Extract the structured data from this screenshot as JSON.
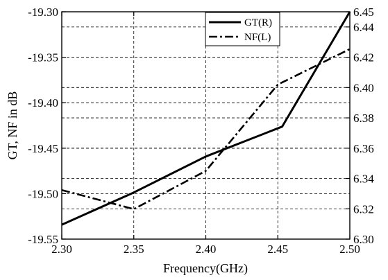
{
  "chart_data": {
    "type": "line",
    "xlabel": "Frequency(GHz)",
    "ylabel": "GT, NF in dB",
    "xlim": [
      2.3,
      2.5
    ],
    "ylim_left": [
      -19.55,
      -19.3
    ],
    "ylim_right": [
      6.3,
      6.45
    ],
    "x_ticks": [
      "2.30",
      "2.35",
      "2.40",
      "2.45",
      "2.50"
    ],
    "left_ticks": [
      "-19.55",
      "-19.50",
      "-19.45",
      "-19.40",
      "-19.35",
      "-19.30"
    ],
    "right_ticks": [
      "6.30",
      "6.32",
      "6.34",
      "6.36",
      "6.38",
      "6.40",
      "6.42",
      "6.44",
      "6.45"
    ],
    "grid": true,
    "legend_position": "top-right",
    "series": [
      {
        "name": "GT(R)",
        "axis": "right",
        "style": "solid",
        "x": [
          2.3,
          2.35,
          2.4,
          2.453,
          2.5
        ],
        "y": [
          6.3095,
          6.3308,
          6.3545,
          6.3742,
          6.45
        ]
      },
      {
        "name": "NF(L)",
        "axis": "left",
        "style": "dashdot",
        "x": [
          2.3,
          2.35,
          2.4,
          2.45,
          2.5
        ],
        "y": [
          -19.496,
          -19.517,
          -19.475,
          -19.38,
          -19.341
        ]
      }
    ]
  }
}
